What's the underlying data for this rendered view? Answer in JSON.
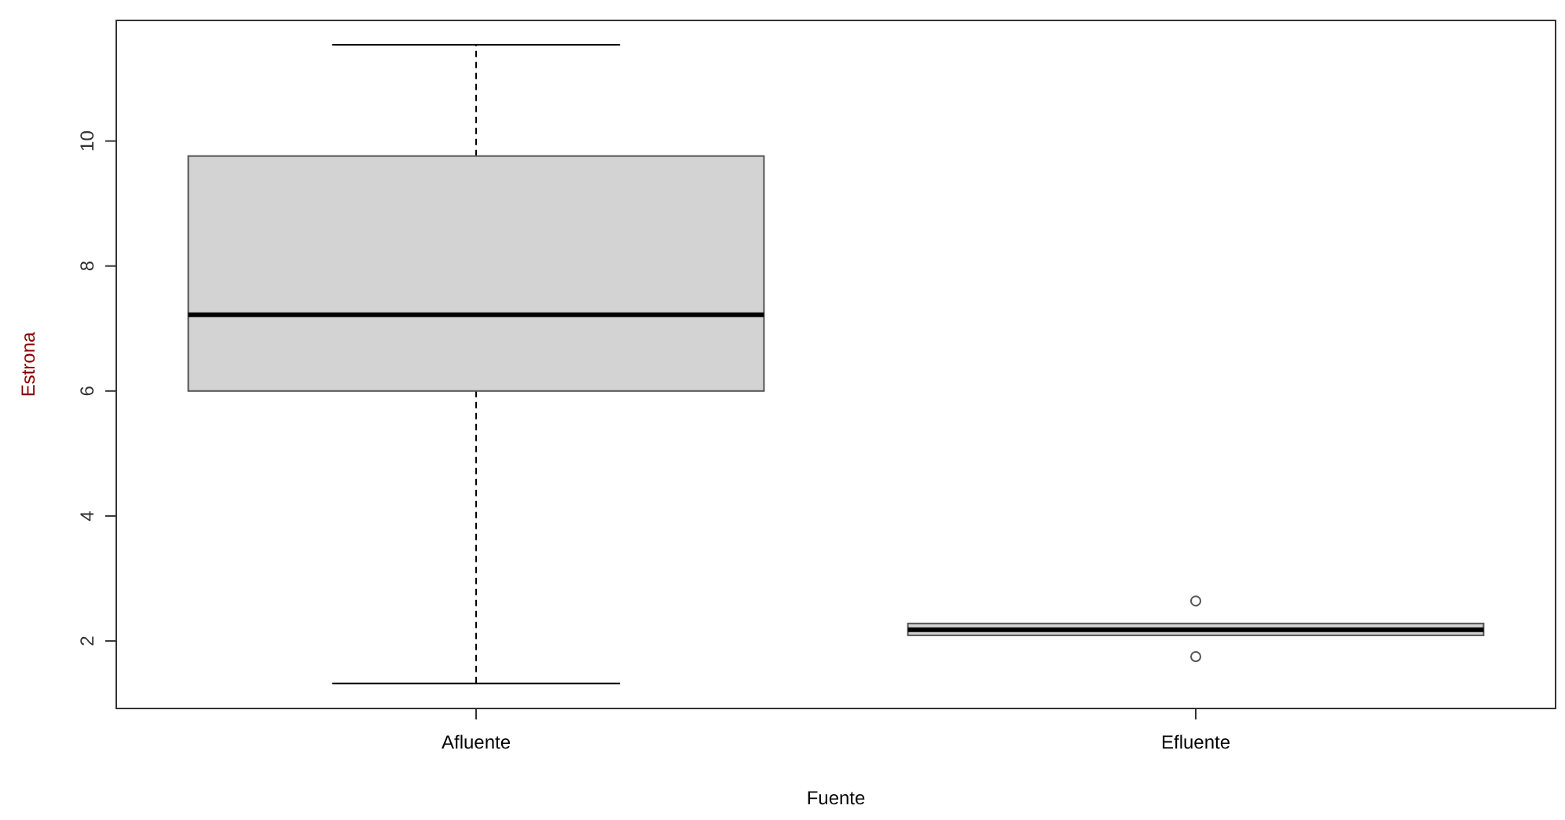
{
  "chart_data": {
    "type": "box",
    "xlabel": "Fuente",
    "ylabel": "Estrona",
    "categories": [
      "Afluente",
      "Efluente"
    ],
    "color": "#d3d3d3",
    "boxes": [
      {
        "low": 1.32,
        "q1": 6.0,
        "median": 7.22,
        "q3": 9.76,
        "high": 11.54
      },
      {
        "low": 2.12,
        "q1": 2.09,
        "median": 2.18,
        "q3": 2.28,
        "high": 2.22,
        "outliers": [
          2.64,
          1.75
        ]
      }
    ],
    "ylim": [
      0.92,
      11.93
    ],
    "yticks": [
      2,
      4,
      6,
      8,
      10
    ],
    "grid": false
  }
}
